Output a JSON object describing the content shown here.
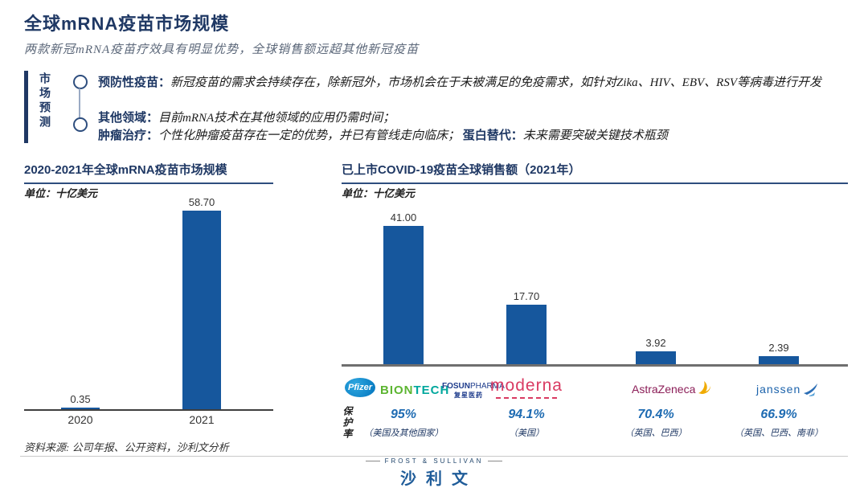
{
  "page": {
    "title": "全球mRNA疫苗市场规模",
    "subtitle": "两款新冠mRNA疫苗疗效具有明显优势，全球销售额远超其他新冠疫苗"
  },
  "callout": {
    "side_label": "市场预测",
    "bullet1": {
      "label": "预防性疫苗：",
      "text": "新冠疫苗的需求会持续存在，除新冠外，市场机会在于未被满足的免疫需求，如针对Zika、HIV、EBV、RSV等病毒进行开发"
    },
    "bullet2": {
      "line1_label": "其他领域：",
      "line1_text": "目前mRNA技术在其他领域的应用仍需时间；",
      "line2_label": "肿瘤治疗：",
      "line2_text": "个性化肿瘤疫苗存在一定的优势，并已有管线走向临床；",
      "line2_label2": "蛋白替代：",
      "line2_text2": "未来需要突破关键技术瓶颈"
    }
  },
  "chart_data": [
    {
      "type": "bar",
      "title": "2020-2021年全球mRNA疫苗市场规模",
      "unit_label": "单位：十亿美元",
      "categories": [
        "2020",
        "2021"
      ],
      "values": [
        0.35,
        58.7
      ],
      "value_labels": [
        "0.35",
        "58.70"
      ],
      "ylim": [
        0,
        60
      ],
      "bar_color": "#16579D",
      "grid": false,
      "legend": "none"
    },
    {
      "type": "bar",
      "title": "已上市COVID-19疫苗全球销售额（2021年）",
      "unit_label": "单位：十亿美元",
      "categories": [
        "Pfizer / BioNTech / 复星医药",
        "Moderna",
        "AstraZeneca",
        "Janssen"
      ],
      "values": [
        41.0,
        17.7,
        3.92,
        2.39
      ],
      "value_labels": [
        "41.00",
        "17.70",
        "3.92",
        "2.39"
      ],
      "ylim": [
        0,
        45
      ],
      "bar_color": "#16579D",
      "grid": false,
      "legend": "none",
      "protection_side_label": "保护率",
      "protection": [
        {
          "rate": "95%",
          "regions": "（美国及其他国家）"
        },
        {
          "rate": "94.1%",
          "regions": "（美国）"
        },
        {
          "rate": "70.4%",
          "regions": "（英国、巴西）"
        },
        {
          "rate": "66.9%",
          "regions": "（英国、巴西、南非）"
        }
      ]
    }
  ],
  "logos": {
    "pfizer": "Pfizer",
    "biontech_left": "BION",
    "biontech_right": "TECH",
    "fosun_bold": "FOSUN",
    "fosun_light": "PHARMA",
    "fosun_cn": "复星医药",
    "moderna": "moderna",
    "astrazeneca": "AstraZeneca",
    "janssen": "janssen"
  },
  "footer": {
    "source": "资料来源: 公司年报、公开资料，沙利文分析",
    "brand_en": "FROST & SULLIVAN",
    "brand_cn": "沙利文"
  },
  "colors": {
    "navy": "#1F3864",
    "bar_blue": "#16579D",
    "percent_blue": "#1E6BB2",
    "subtitle_gray": "#5A6678"
  }
}
